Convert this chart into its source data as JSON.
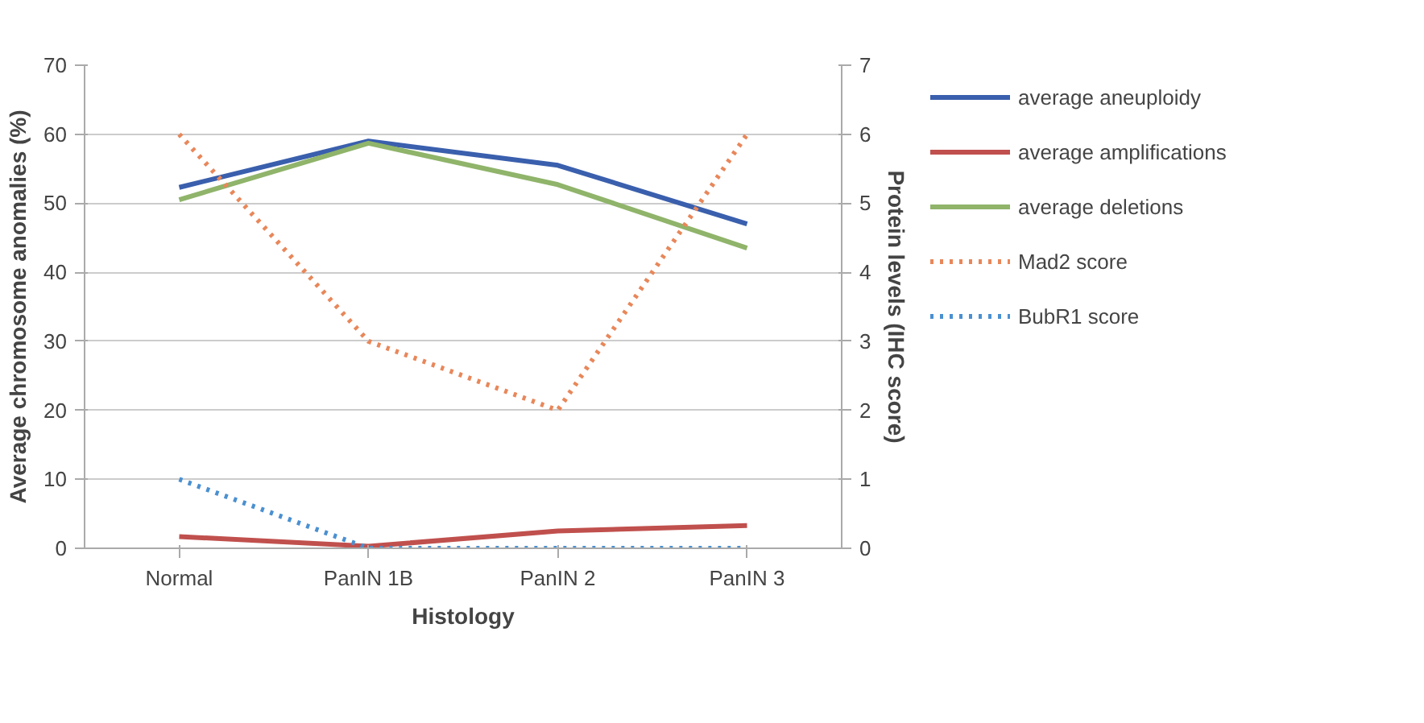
{
  "chart_data": {
    "type": "line",
    "xlabel": "Histology",
    "ylabel": "Average chromosome anomalies (%)",
    "y2label": "Protein levels (IHC score)",
    "categories": [
      "Normal",
      "PanIN 1B",
      "PanIN 2",
      "PanIN 3"
    ],
    "series": [
      {
        "name": "average aneuploidy",
        "color": "#3a5fad",
        "values": [
          52.3,
          59,
          55.5,
          47
        ],
        "line_style": "solid"
      },
      {
        "name": "average amplifications",
        "color": "#c0504d",
        "values": [
          1.7,
          0.3,
          2.5,
          3.3
        ],
        "line_style": "solid"
      },
      {
        "name": "average deletions",
        "color": "#8fb46a",
        "values": [
          50.5,
          58.7,
          52.7,
          43.5
        ],
        "line_style": "solid"
      },
      {
        "name": "Mad2 score",
        "color": "#e8875a",
        "values": [
          6,
          3,
          2,
          6
        ],
        "axis": "y2",
        "line_style": "dotted"
      },
      {
        "name": "BubR1 score",
        "color": "#4a90d0",
        "values": [
          1,
          0,
          0,
          0
        ],
        "axis": "y2",
        "line_style": "dotted"
      }
    ],
    "ylim": [
      0,
      70
    ],
    "yticks": [
      0,
      10,
      20,
      30,
      40,
      50,
      60,
      70
    ],
    "y2lim": [
      0,
      7
    ],
    "y2ticks": [
      0,
      1,
      2,
      3,
      4,
      5,
      6,
      7
    ],
    "grid": "y",
    "legend": "right",
    "marker": "none"
  }
}
